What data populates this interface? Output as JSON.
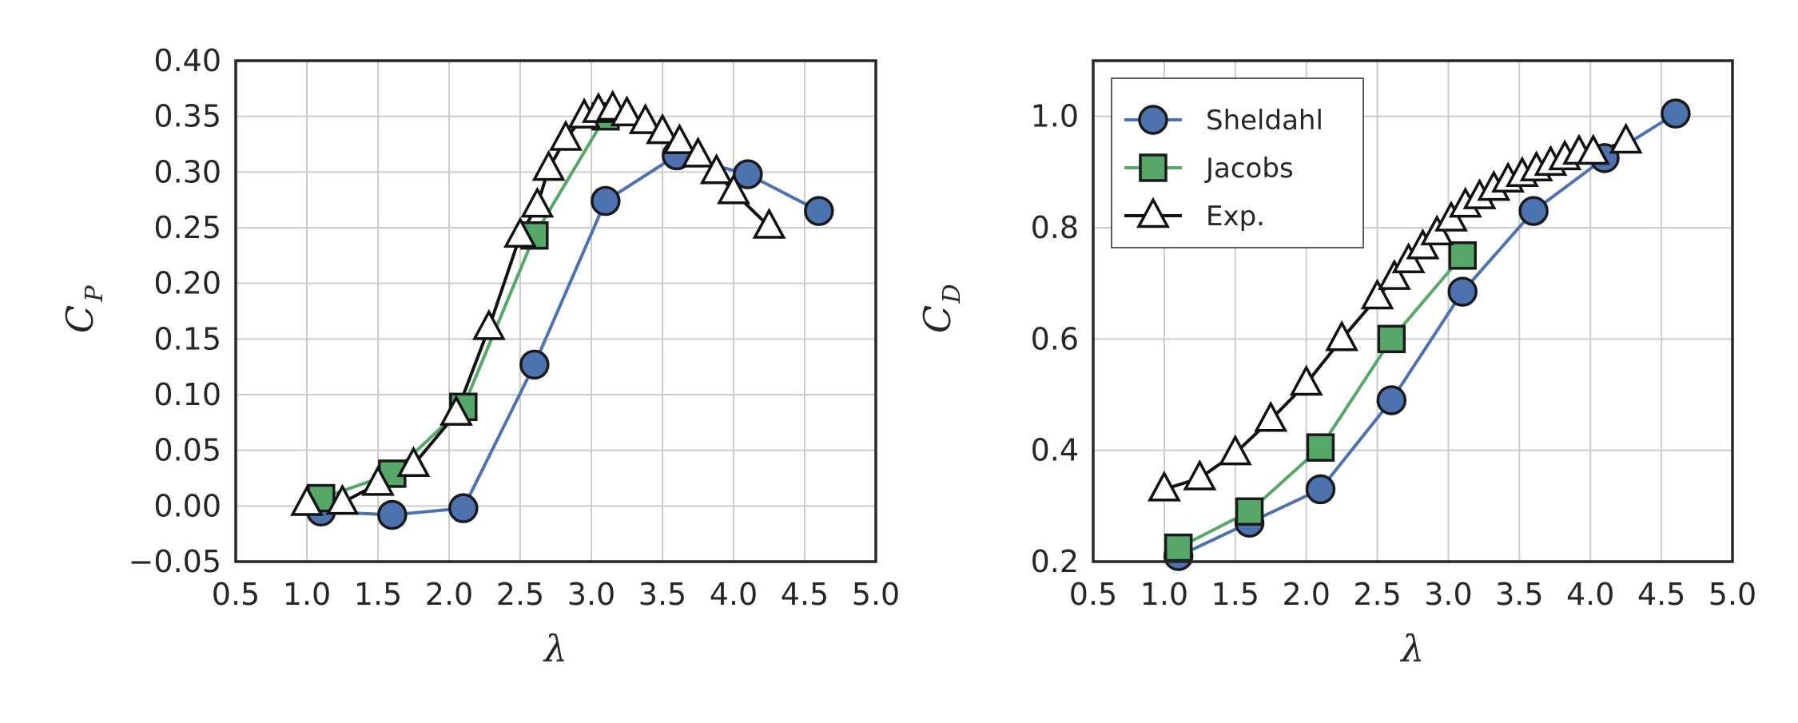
{
  "chart_data": [
    {
      "type": "line",
      "title": "",
      "xlabel": "λ",
      "ylabel": "C",
      "ylabel_sub": "P",
      "xlim": [
        0.5,
        5.0
      ],
      "ylim": [
        -0.05,
        0.4
      ],
      "xticks": [
        "0.5",
        "1.0",
        "1.5",
        "2.0",
        "2.5",
        "3.0",
        "3.5",
        "4.0",
        "4.5",
        "5.0"
      ],
      "yticks": [
        "−0.05",
        "0.00",
        "0.05",
        "0.10",
        "0.15",
        "0.20",
        "0.25",
        "0.30",
        "0.35",
        "0.40"
      ],
      "grid": true,
      "legend": false,
      "series": [
        {
          "name": "Sheldahl",
          "color": "#4c72b0",
          "marker": "circle",
          "x": [
            1.1,
            1.6,
            2.1,
            2.6,
            3.1,
            3.6,
            4.1,
            4.6
          ],
          "y": [
            -0.005,
            -0.008,
            -0.002,
            0.127,
            0.274,
            0.315,
            0.298,
            0.265
          ]
        },
        {
          "name": "Jacobs",
          "color": "#55a868",
          "marker": "square",
          "x": [
            1.1,
            1.6,
            2.1,
            2.6,
            3.1
          ],
          "y": [
            0.007,
            0.029,
            0.089,
            0.243,
            0.35
          ]
        },
        {
          "name": "Exp.",
          "color": "#111111",
          "marker": "triangle",
          "x": [
            1.0,
            1.25,
            1.5,
            1.75,
            2.05,
            2.28,
            2.5,
            2.62,
            2.7,
            2.82,
            2.95,
            3.05,
            3.15,
            3.25,
            3.38,
            3.5,
            3.62,
            3.75,
            3.88,
            4.0,
            4.25
          ],
          "y": [
            0.002,
            0.003,
            0.02,
            0.037,
            0.083,
            0.16,
            0.243,
            0.27,
            0.303,
            0.33,
            0.35,
            0.355,
            0.357,
            0.352,
            0.345,
            0.336,
            0.327,
            0.315,
            0.3,
            0.282,
            0.251
          ]
        }
      ]
    },
    {
      "type": "line",
      "title": "",
      "xlabel": "λ",
      "ylabel": "C",
      "ylabel_sub": "D",
      "xlim": [
        0.5,
        5.0
      ],
      "ylim": [
        0.2,
        1.1
      ],
      "xticks": [
        "0.5",
        "1.0",
        "1.5",
        "2.0",
        "2.5",
        "3.0",
        "3.5",
        "4.0",
        "4.5",
        "5.0"
      ],
      "yticks": [
        "0.2",
        "0.4",
        "0.6",
        "0.8",
        "1.0"
      ],
      "ytick_values": [
        0.2,
        0.4,
        0.6,
        0.8,
        1.0
      ],
      "grid": true,
      "legend": true,
      "legend_position": "top-left",
      "series": [
        {
          "name": "Sheldahl",
          "color": "#4c72b0",
          "marker": "circle",
          "x": [
            1.1,
            1.6,
            2.1,
            2.6,
            3.1,
            3.6,
            4.1,
            4.6
          ],
          "y": [
            0.21,
            0.27,
            0.33,
            0.49,
            0.685,
            0.83,
            0.925,
            1.005
          ]
        },
        {
          "name": "Jacobs",
          "color": "#55a868",
          "marker": "square",
          "x": [
            1.1,
            1.6,
            2.1,
            2.6,
            3.1
          ],
          "y": [
            0.225,
            0.29,
            0.405,
            0.6,
            0.75
          ]
        },
        {
          "name": "Exp.",
          "color": "#111111",
          "marker": "triangle",
          "x": [
            1.0,
            1.25,
            1.5,
            1.75,
            2.0,
            2.25,
            2.5,
            2.62,
            2.72,
            2.82,
            2.92,
            3.02,
            3.12,
            3.22,
            3.32,
            3.42,
            3.52,
            3.62,
            3.72,
            3.82,
            3.92,
            4.02,
            4.25
          ],
          "y": [
            0.33,
            0.35,
            0.395,
            0.455,
            0.52,
            0.6,
            0.675,
            0.71,
            0.74,
            0.765,
            0.79,
            0.815,
            0.84,
            0.855,
            0.87,
            0.885,
            0.895,
            0.905,
            0.915,
            0.925,
            0.935,
            0.935,
            0.955
          ]
        }
      ]
    }
  ]
}
